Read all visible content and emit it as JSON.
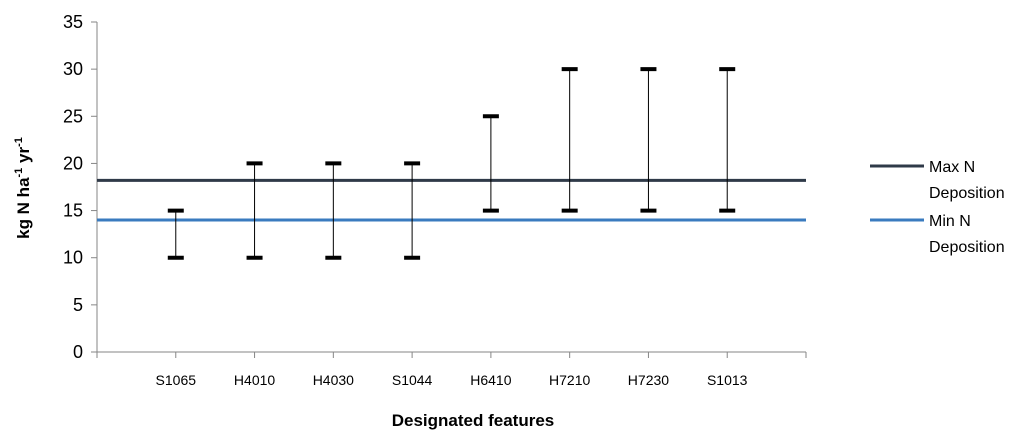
{
  "chart_data": {
    "type": "range",
    "xlabel": "Designated features",
    "ylabel": "kg N ha-1 yr-1",
    "ylim": [
      0,
      35
    ],
    "yticks": [
      0,
      5,
      10,
      15,
      20,
      25,
      30,
      35
    ],
    "categories": [
      "S1065",
      "H4010",
      "H4030",
      "S1044",
      "H6410",
      "H7210",
      "H7230",
      "S1013"
    ],
    "ranges": [
      {
        "low": 10,
        "high": 15
      },
      {
        "low": 10,
        "high": 20
      },
      {
        "low": 10,
        "high": 20
      },
      {
        "low": 10,
        "high": 20
      },
      {
        "low": 15,
        "high": 25
      },
      {
        "low": 15,
        "high": 30
      },
      {
        "low": 15,
        "high": 30
      },
      {
        "low": 15,
        "high": 30
      }
    ],
    "series": [
      {
        "name": "Max N Deposition",
        "value": 18.2,
        "color": "#2f3a48"
      },
      {
        "name": "Min N Deposition",
        "value": 14.0,
        "color": "#3a7bbf"
      }
    ],
    "legend": {
      "position": "right",
      "items": [
        {
          "line1": "Max N",
          "line2": "Deposition"
        },
        {
          "line1": "Min N",
          "line2": "Deposition"
        }
      ]
    },
    "grid": false
  }
}
